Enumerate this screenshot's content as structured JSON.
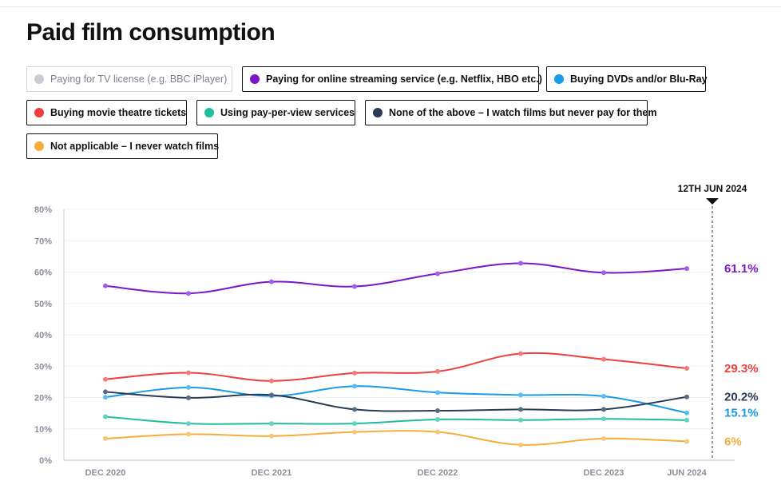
{
  "title": "Paid film consumption",
  "legend": [
    {
      "label": "Paying for TV license (e.g. BBC iPlayer)",
      "color": "#c8ccd4",
      "active": false
    },
    {
      "label": "Paying for online streaming service (e.g. Netflix, HBO etc.)",
      "color": "#7b16c9",
      "active": true
    },
    {
      "label": "Buying DVDs and/or Blu-Ray",
      "color": "#1a9be6",
      "active": true
    },
    {
      "label": "Buying movie theatre tickets",
      "color": "#ef3e3e",
      "active": true
    },
    {
      "label": "Using pay-per-view services",
      "color": "#1fbf9c",
      "active": true
    },
    {
      "label": "None of the above – I watch films but never pay for them",
      "color": "#2b3a55",
      "active": true
    },
    {
      "label": "Not applicable – I never watch films",
      "color": "#f7ad3a",
      "active": true
    }
  ],
  "chart_data": {
    "type": "line",
    "title": "Paid film consumption",
    "xlabel": "",
    "ylabel": "",
    "x": [
      "Dec 2020",
      "Jun 2021",
      "Dec 2021",
      "Jun 2022",
      "Dec 2022",
      "Jun 2023",
      "Dec 2023",
      "Jun 2024"
    ],
    "x_tick_labels": [
      "DEC 2020",
      "",
      "DEC 2021",
      "",
      "DEC 2022",
      "",
      "DEC 2023",
      "JUN 2024"
    ],
    "y_tick_labels": [
      "0%",
      "10%",
      "20%",
      "30%",
      "40%",
      "50%",
      "60%",
      "70%",
      "80%"
    ],
    "ylim": [
      0,
      80
    ],
    "grid": true,
    "marker_label": "12TH JUN 2024",
    "series": [
      {
        "name": "Paying for online streaming service (e.g. Netflix, HBO etc.)",
        "color": "#7b16c9",
        "dot": "#a45de8",
        "values": [
          55.6,
          53.2,
          56.9,
          55.4,
          59.5,
          62.8,
          59.8,
          61.1
        ],
        "end_label": "61.1%"
      },
      {
        "name": "Buying movie theatre tickets",
        "color": "#ef3e3e",
        "dot": "#f57a7a",
        "values": [
          25.8,
          27.9,
          25.3,
          27.8,
          28.3,
          34.0,
          32.2,
          29.3
        ],
        "end_label": "29.3%"
      },
      {
        "name": "None of the above – I watch films but never pay for them",
        "color": "#2b3a55",
        "dot": "#596a86",
        "values": [
          21.8,
          19.9,
          20.8,
          16.2,
          15.8,
          16.2,
          16.2,
          20.2
        ],
        "end_label": "20.2%"
      },
      {
        "name": "Buying DVDs and/or Blu-Ray",
        "color": "#1a9be6",
        "dot": "#5bbcf0",
        "values": [
          20.1,
          23.2,
          20.5,
          23.6,
          21.6,
          20.8,
          20.4,
          15.1
        ],
        "end_label": "15.1%"
      },
      {
        "name": "Using pay-per-view services",
        "color": "#1fbf9c",
        "dot": "#5fd6bb",
        "values": [
          13.9,
          11.7,
          11.7,
          11.7,
          13.0,
          12.8,
          13.2,
          12.8
        ],
        "end_label": null
      },
      {
        "name": "Not applicable – I never watch films",
        "color": "#f7ad3a",
        "dot": "#f9c676",
        "values": [
          6.9,
          8.3,
          7.7,
          9.0,
          9.0,
          4.9,
          6.9,
          6.0
        ],
        "end_label": "6%"
      }
    ]
  }
}
